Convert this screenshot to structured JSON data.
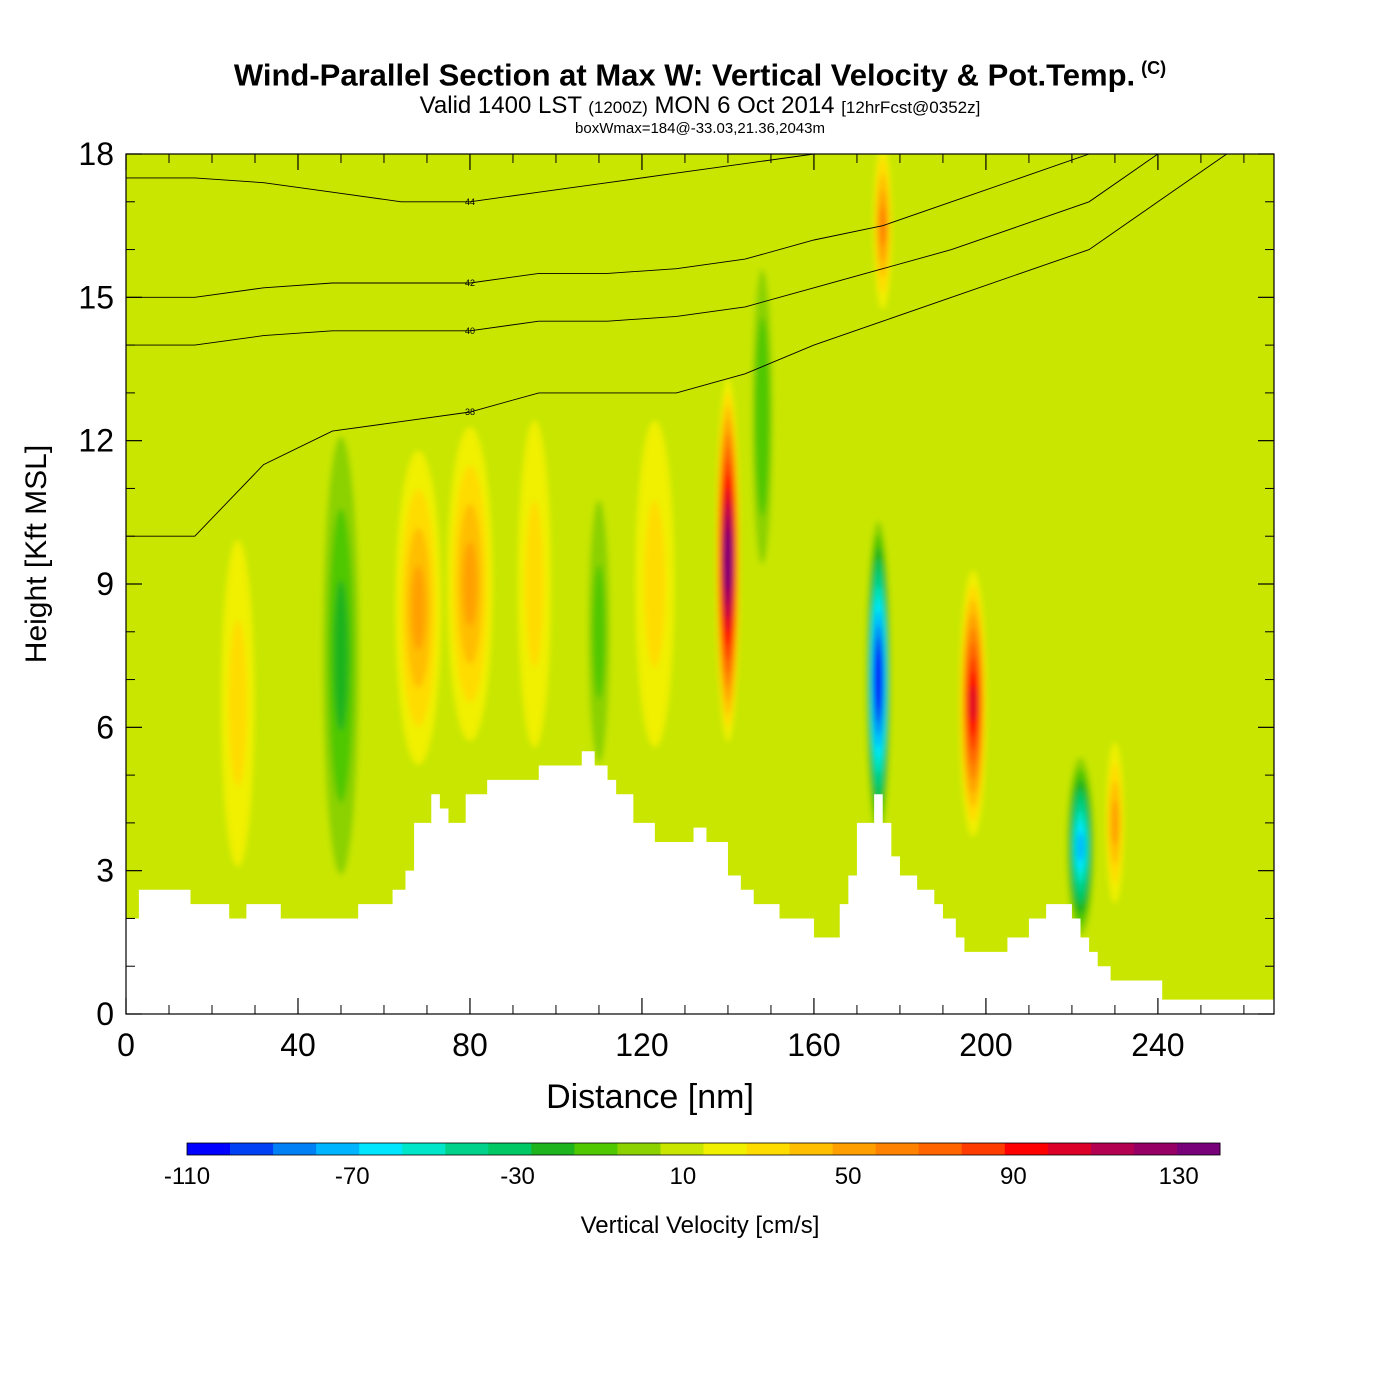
{
  "title": {
    "main": "Wind-Parallel Section at Max W: Vertical Velocity & Pot.Temp.",
    "copyright": "(C)",
    "valid_prefix": "Valid 1400 LST",
    "valid_utc": "(1200Z)",
    "valid_date": "MON 6 Oct 2014",
    "valid_forecast": "[12hrFcst@0352z]",
    "box_wmax": "boxWmax=184@-33.03,21.36,2043m"
  },
  "chart_data": {
    "type": "heatmap",
    "xlabel": "Distance [nm]",
    "ylabel": "Height [Kft MSL]",
    "xlim": [
      0,
      267
    ],
    "ylim": [
      0,
      18
    ],
    "x_ticks": [
      "0",
      "40",
      "80",
      "120",
      "160",
      "200",
      "240"
    ],
    "y_ticks": [
      "0",
      "3",
      "6",
      "9",
      "12",
      "15",
      "18"
    ],
    "colorbar": {
      "label": "Vertical Velocity [cm/s]",
      "min": -110,
      "max": 140,
      "step": 10,
      "tick_labels": [
        "-110",
        "-70",
        "-30",
        "10",
        "50",
        "90",
        "130"
      ],
      "colors": [
        "#0000ff",
        "#0040f5",
        "#0080f5",
        "#00b4ff",
        "#00e6ff",
        "#00e6c8",
        "#00d28c",
        "#00c864",
        "#1eb41e",
        "#50c800",
        "#8cd200",
        "#c8e600",
        "#f0f000",
        "#ffdc00",
        "#ffbe00",
        "#ffa000",
        "#ff8200",
        "#ff6400",
        "#ff3c00",
        "#ff0000",
        "#dc0028",
        "#b40050",
        "#960064",
        "#780078"
      ]
    },
    "terrain_height_kft": {
      "x": [
        0,
        3,
        15,
        24,
        28,
        36,
        51,
        54,
        62,
        65,
        67,
        71,
        73,
        75,
        79,
        84,
        96,
        102,
        106,
        109,
        112,
        114,
        118,
        123,
        132,
        135,
        140,
        143,
        146,
        152,
        160,
        162,
        166,
        168,
        170,
        174,
        176,
        178,
        180,
        184,
        188,
        190,
        193,
        195,
        203,
        205,
        210,
        214,
        217,
        220,
        222,
        224,
        226,
        229,
        239,
        241,
        252,
        267
      ],
      "y": [
        2.0,
        2.6,
        2.3,
        2.0,
        2.3,
        2.0,
        2.0,
        2.3,
        2.6,
        3.0,
        4.0,
        4.6,
        4.3,
        4.0,
        4.6,
        4.9,
        5.2,
        5.2,
        5.5,
        5.2,
        4.9,
        4.6,
        4.0,
        3.6,
        3.9,
        3.6,
        2.9,
        2.6,
        2.3,
        2.0,
        1.6,
        1.6,
        2.3,
        2.9,
        4.0,
        4.6,
        4.0,
        3.3,
        2.9,
        2.6,
        2.3,
        2.0,
        1.6,
        1.3,
        1.3,
        1.6,
        2.0,
        2.3,
        2.3,
        2.0,
        1.6,
        1.3,
        1.0,
        0.7,
        0.7,
        0.3,
        0.3,
        0.3
      ]
    },
    "vertical_velocity_features": [
      {
        "x": 26,
        "y_center": 6.5,
        "half_width_nm": 5,
        "half_height_kft": 5,
        "value": 20
      },
      {
        "x": 38,
        "y_center": 6.0,
        "half_width_nm": 4,
        "half_height_kft": 5,
        "value": 0
      },
      {
        "x": 50,
        "y_center": 7.5,
        "half_width_nm": 5,
        "half_height_kft": 6,
        "value": -25
      },
      {
        "x": 68,
        "y_center": 8.5,
        "half_width_nm": 6,
        "half_height_kft": 4,
        "value": 45
      },
      {
        "x": 80,
        "y_center": 9.0,
        "half_width_nm": 6,
        "half_height_kft": 4,
        "value": 40
      },
      {
        "x": 95,
        "y_center": 9.0,
        "half_width_nm": 5,
        "half_height_kft": 5,
        "value": 25
      },
      {
        "x": 110,
        "y_center": 8.0,
        "half_width_nm": 3,
        "half_height_kft": 4,
        "value": -15
      },
      {
        "x": 123,
        "y_center": 9.0,
        "half_width_nm": 6,
        "half_height_kft": 5,
        "value": 25
      },
      {
        "x": 140,
        "y_center": 9.5,
        "half_width_nm": 2.5,
        "half_height_kft": 4,
        "value": 130
      },
      {
        "x": 148,
        "y_center": 12.5,
        "half_width_nm": 2.5,
        "half_height_kft": 4,
        "value": -20
      },
      {
        "x": 176,
        "y_center": 16.5,
        "half_width_nm": 2,
        "half_height_kft": 2,
        "value": 50
      },
      {
        "x": 175,
        "y_center": 7.0,
        "half_width_nm": 2.5,
        "half_height_kft": 3.5,
        "value": -110
      },
      {
        "x": 197,
        "y_center": 6.5,
        "half_width_nm": 3,
        "half_height_kft": 3,
        "value": 95
      },
      {
        "x": 222,
        "y_center": 3.5,
        "half_width_nm": 3,
        "half_height_kft": 2,
        "value": -75
      },
      {
        "x": 230,
        "y_center": 4.0,
        "half_width_nm": 2,
        "half_height_kft": 2,
        "value": 40
      }
    ],
    "pot_temp_contours": [
      {
        "label": "38",
        "y": [
          10.0,
          10.0,
          11.5,
          12.2,
          12.4,
          12.6,
          13.0,
          13.0,
          13.0,
          13.4,
          14.0,
          14.5,
          15.0,
          15.5,
          16.0,
          17.0,
          18.0,
          18.0
        ]
      },
      {
        "label": "40",
        "y": [
          14.0,
          14.0,
          14.2,
          14.3,
          14.3,
          14.3,
          14.5,
          14.5,
          14.6,
          14.8,
          15.2,
          15.6,
          16.0,
          16.5,
          17.0,
          18.0,
          18.0,
          18.0
        ]
      },
      {
        "label": "42",
        "y": [
          15.0,
          15.0,
          15.2,
          15.3,
          15.3,
          15.3,
          15.5,
          15.5,
          15.6,
          15.8,
          16.2,
          16.5,
          17.0,
          17.5,
          18.0,
          18.0,
          18.0,
          18.0
        ]
      },
      {
        "label": "44",
        "y": [
          17.5,
          17.5,
          17.4,
          17.2,
          17.0,
          17.0,
          17.2,
          17.4,
          17.6,
          17.8,
          18.0,
          18.0,
          18.0,
          18.0,
          18.0,
          18.0,
          18.0,
          18.0
        ]
      }
    ],
    "pot_temp_contour_x": [
      0,
      16,
      32,
      48,
      64,
      80,
      96,
      112,
      128,
      144,
      160,
      176,
      192,
      208,
      224,
      240,
      256,
      267
    ]
  }
}
